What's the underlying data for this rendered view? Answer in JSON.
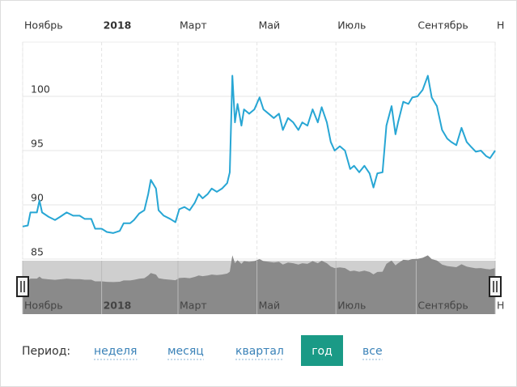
{
  "chart_data": {
    "type": "line",
    "x": [
      0,
      4,
      6,
      11,
      13,
      15,
      20,
      25,
      29,
      34,
      39,
      44,
      48,
      53,
      56,
      61,
      65,
      70,
      75,
      78,
      83,
      86,
      90,
      94,
      97,
      99,
      103,
      105,
      109,
      114,
      118,
      121,
      125,
      129,
      133,
      136,
      139,
      143,
      146,
      150,
      154,
      158,
      160,
      162,
      164,
      166,
      169,
      171,
      175,
      179,
      183,
      186,
      190,
      194,
      198,
      201,
      205,
      209,
      213,
      216,
      220,
      224,
      228,
      231,
      235,
      238,
      241,
      245,
      249,
      253,
      256,
      260,
      264,
      268,
      271,
      274,
      278,
      281,
      285,
      288,
      290,
      294,
      298,
      301,
      305,
      309,
      313,
      316,
      320,
      324,
      328,
      331,
      335,
      339,
      343,
      346,
      350,
      354,
      358,
      361,
      365
    ],
    "series": [
      {
        "color": "#27a6d4",
        "values": [
          88.0,
          88.1,
          89.3,
          89.3,
          90.4,
          89.3,
          88.9,
          88.6,
          88.9,
          89.3,
          89.0,
          89.0,
          88.7,
          88.7,
          87.8,
          87.8,
          87.5,
          87.4,
          87.6,
          88.3,
          88.3,
          88.6,
          89.2,
          89.5,
          91.0,
          92.3,
          91.5,
          89.5,
          89.0,
          88.7,
          88.4,
          89.6,
          89.8,
          89.5,
          90.2,
          91.0,
          90.6,
          91.0,
          91.5,
          91.2,
          91.5,
          92.0,
          93.0,
          101.9,
          97.6,
          99.3,
          97.3,
          98.8,
          98.4,
          98.8,
          99.9,
          98.8,
          98.4,
          98.0,
          98.4,
          96.9,
          98.0,
          97.6,
          96.9,
          97.6,
          97.3,
          98.8,
          97.6,
          99.0,
          97.6,
          95.8,
          95.0,
          95.4,
          95.0,
          93.3,
          93.6,
          93.0,
          93.6,
          92.9,
          91.6,
          92.9,
          93.0,
          97.3,
          99.1,
          96.5,
          97.6,
          99.5,
          99.3,
          99.9,
          100.0,
          100.6,
          101.9,
          99.9,
          99.1,
          96.9,
          96.1,
          95.8,
          95.5,
          97.1,
          95.8,
          95.4,
          94.9,
          95.0,
          94.5,
          94.3,
          95.0
        ]
      }
    ],
    "xlim": [
      0,
      365
    ],
    "xticks": [
      {
        "value": 0,
        "label": "Ноябрь"
      },
      {
        "value": 61,
        "label": "2018"
      },
      {
        "value": 120,
        "label": "Март"
      },
      {
        "value": 181,
        "label": "Май"
      },
      {
        "value": 242,
        "label": "Июль"
      },
      {
        "value": 304,
        "label": "Сентябрь"
      },
      {
        "value": 365,
        "label": "Н"
      }
    ],
    "ylim": [
      85,
      105
    ],
    "yticks": [
      85,
      90,
      95,
      100
    ],
    "grid": true,
    "navigator": true
  },
  "period_selector": {
    "label": "Период:",
    "options": [
      "неделя",
      "месяц",
      "квартал",
      "год",
      "все"
    ],
    "active_index": 3
  }
}
